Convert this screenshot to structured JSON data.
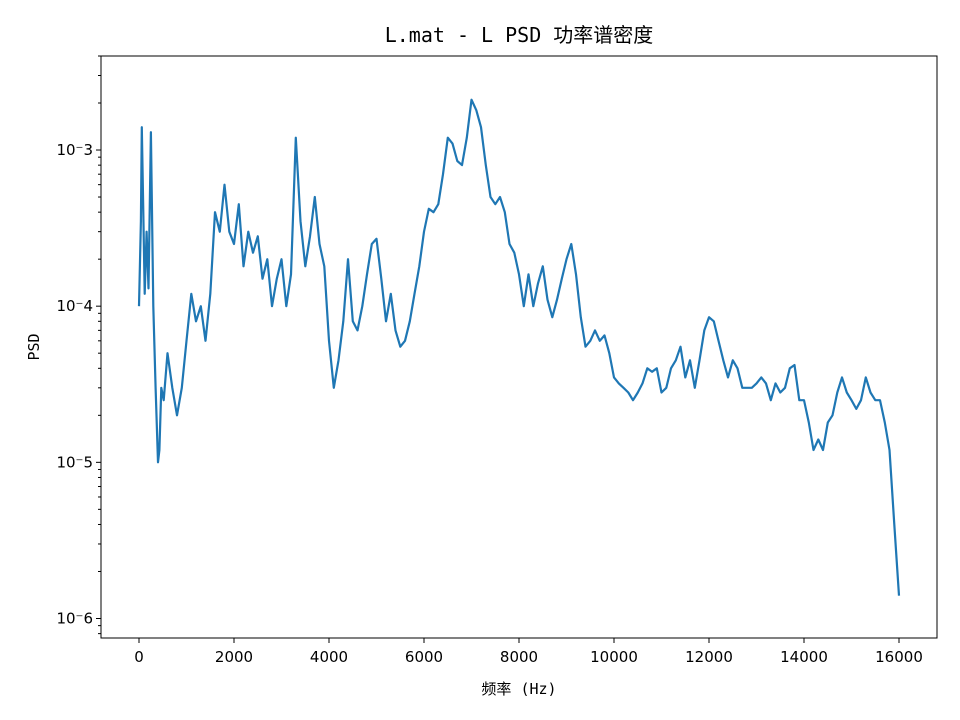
{
  "chart_data": {
    "type": "line",
    "title": "L.mat - L PSD 功率谱密度",
    "xlabel": "频率 (Hz)",
    "ylabel": "PSD",
    "xlim": [
      -800,
      16800
    ],
    "ylim": [
      7.5e-07,
      0.004
    ],
    "yscale": "log",
    "grid": false,
    "line_color": "#1f77b4",
    "x_ticks": [
      0,
      2000,
      4000,
      6000,
      8000,
      10000,
      12000,
      14000,
      16000
    ],
    "x_tick_labels": [
      "0",
      "2000",
      "4000",
      "6000",
      "8000",
      "10000",
      "12000",
      "14000",
      "16000"
    ],
    "y_ticks": [
      0.001,
      0.0001,
      1e-05,
      1e-06
    ],
    "y_tick_labels": [
      "10⁻3",
      "10⁻4",
      "10⁻5",
      "10⁻6"
    ],
    "series": [
      {
        "x": [
          0,
          40,
          60,
          90,
          120,
          160,
          200,
          250,
          300,
          350,
          400,
          430,
          470,
          520,
          600,
          700,
          800,
          900,
          1000,
          1100,
          1200,
          1300,
          1400,
          1500,
          1600,
          1700,
          1800,
          1900,
          2000,
          2100,
          2200,
          2300,
          2400,
          2500,
          2600,
          2700,
          2800,
          2900,
          3000,
          3100,
          3200,
          3300,
          3400,
          3500,
          3600,
          3700,
          3800,
          3900,
          4000,
          4100,
          4200,
          4300,
          4400,
          4500,
          4600,
          4700,
          4800,
          4900,
          5000,
          5100,
          5200,
          5300,
          5400,
          5500,
          5600,
          5700,
          5800,
          5900,
          6000,
          6100,
          6200,
          6300,
          6400,
          6500,
          6600,
          6700,
          6800,
          6900,
          7000,
          7100,
          7200,
          7300,
          7400,
          7500,
          7600,
          7700,
          7800,
          7900,
          8000,
          8100,
          8200,
          8300,
          8400,
          8500,
          8600,
          8700,
          8800,
          8900,
          9000,
          9100,
          9200,
          9300,
          9400,
          9500,
          9600,
          9700,
          9800,
          9900,
          10000,
          10100,
          10200,
          10300,
          10400,
          10500,
          10600,
          10700,
          10800,
          10900,
          11000,
          11100,
          11200,
          11300,
          11400,
          11500,
          11600,
          11700,
          11800,
          11900,
          12000,
          12100,
          12200,
          12300,
          12400,
          12500,
          12600,
          12700,
          12800,
          12900,
          13000,
          13100,
          13200,
          13300,
          13400,
          13500,
          13600,
          13700,
          13800,
          13900,
          14000,
          14100,
          14200,
          14300,
          14400,
          14500,
          14600,
          14700,
          14800,
          14900,
          15000,
          15100,
          15200,
          15300,
          15400,
          15500,
          15600,
          15700,
          15800,
          15900,
          16000
        ],
        "values": [
          0.0001,
          0.00035,
          0.0014,
          0.0004,
          0.00012,
          0.0003,
          0.00013,
          0.0013,
          0.0001,
          3e-05,
          1e-05,
          1.2e-05,
          3e-05,
          2.5e-05,
          5e-05,
          3e-05,
          2e-05,
          3e-05,
          6e-05,
          0.00012,
          8e-05,
          0.0001,
          6e-05,
          0.00012,
          0.0004,
          0.0003,
          0.0006,
          0.0003,
          0.00025,
          0.00045,
          0.00018,
          0.0003,
          0.00022,
          0.00028,
          0.00015,
          0.0002,
          0.0001,
          0.00015,
          0.0002,
          0.0001,
          0.00016,
          0.0012,
          0.00035,
          0.00018,
          0.00028,
          0.0005,
          0.00025,
          0.00018,
          6e-05,
          3e-05,
          4.5e-05,
          8e-05,
          0.0002,
          8e-05,
          7e-05,
          0.0001,
          0.00016,
          0.00025,
          0.00027,
          0.00015,
          8e-05,
          0.00012,
          7e-05,
          5.5e-05,
          6e-05,
          8e-05,
          0.00012,
          0.00018,
          0.0003,
          0.00042,
          0.0004,
          0.00045,
          0.0007,
          0.0012,
          0.0011,
          0.00085,
          0.0008,
          0.0012,
          0.0021,
          0.0018,
          0.0014,
          0.0008,
          0.0005,
          0.00045,
          0.0005,
          0.0004,
          0.00025,
          0.00022,
          0.00016,
          0.0001,
          0.00016,
          0.0001,
          0.00014,
          0.00018,
          0.00011,
          8.5e-05,
          0.00011,
          0.00015,
          0.0002,
          0.00025,
          0.00016,
          8.5e-05,
          5.5e-05,
          6e-05,
          7e-05,
          6e-05,
          6.5e-05,
          5e-05,
          3.5e-05,
          3.2e-05,
          3e-05,
          2.8e-05,
          2.5e-05,
          2.8e-05,
          3.2e-05,
          4e-05,
          3.8e-05,
          4e-05,
          2.8e-05,
          3e-05,
          4e-05,
          4.5e-05,
          5.5e-05,
          3.5e-05,
          4.5e-05,
          3e-05,
          4.5e-05,
          7e-05,
          8.5e-05,
          8e-05,
          6e-05,
          4.5e-05,
          3.5e-05,
          4.5e-05,
          4e-05,
          3e-05,
          3e-05,
          3e-05,
          3.2e-05,
          3.5e-05,
          3.2e-05,
          2.5e-05,
          3.2e-05,
          2.8e-05,
          3e-05,
          4e-05,
          4.2e-05,
          2.5e-05,
          2.5e-05,
          1.8e-05,
          1.2e-05,
          1.4e-05,
          1.2e-05,
          1.8e-05,
          2e-05,
          2.8e-05,
          3.5e-05,
          2.8e-05,
          2.5e-05,
          2.2e-05,
          2.5e-05,
          3.5e-05,
          2.8e-05,
          2.5e-05,
          2.5e-05,
          1.8e-05,
          1.2e-05,
          4e-06,
          1.4e-06
        ]
      }
    ]
  }
}
